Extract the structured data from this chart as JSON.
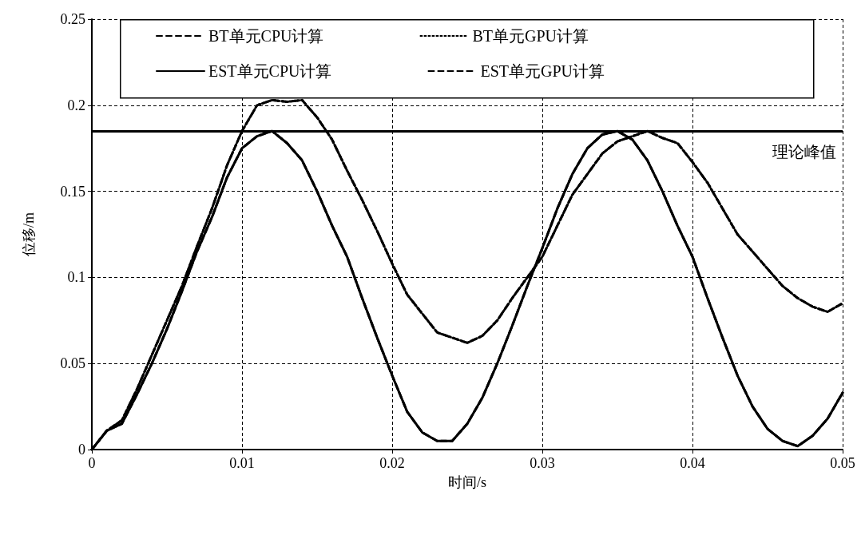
{
  "chart_data": {
    "type": "line",
    "xlabel": "时间/s",
    "ylabel": "位移/m",
    "x": [
      0,
      0.001,
      0.002,
      0.003,
      0.004,
      0.005,
      0.006,
      0.007,
      0.008,
      0.009,
      0.01,
      0.011,
      0.012,
      0.013,
      0.014,
      0.015,
      0.016,
      0.017,
      0.018,
      0.019,
      0.02,
      0.021,
      0.022,
      0.023,
      0.024,
      0.025,
      0.026,
      0.027,
      0.028,
      0.029,
      0.03,
      0.031,
      0.032,
      0.033,
      0.034,
      0.035,
      0.036,
      0.037,
      0.038,
      0.039,
      0.04,
      0.041,
      0.042,
      0.043,
      0.044,
      0.045,
      0.046,
      0.047,
      0.048,
      0.049,
      0.05
    ],
    "series": [
      {
        "name": "BT单元CPU计算",
        "color": "#000000",
        "line_style": "dashed",
        "values": [
          0,
          0.011,
          0.017,
          0.035,
          0.055,
          0.075,
          0.095,
          0.118,
          0.14,
          0.165,
          0.185,
          0.2,
          0.203,
          0.202,
          0.203,
          0.193,
          0.18,
          0.162,
          0.145,
          0.127,
          0.108,
          0.09,
          0.079,
          0.068,
          0.065,
          0.062,
          0.066,
          0.075,
          0.088,
          0.1,
          0.112,
          0.13,
          0.148,
          0.16,
          0.172,
          0.179,
          0.182,
          0.185,
          0.181,
          0.178,
          0.167,
          0.155,
          0.14,
          0.125,
          0.115,
          0.105,
          0.095,
          0.088,
          0.083,
          0.08,
          0.085
        ]
      },
      {
        "name": "BT单元GPU计算",
        "color": "#000000",
        "line_style": "dotted",
        "values": [
          0,
          0.011,
          0.017,
          0.035,
          0.055,
          0.075,
          0.095,
          0.118,
          0.14,
          0.165,
          0.185,
          0.2,
          0.203,
          0.202,
          0.203,
          0.193,
          0.18,
          0.162,
          0.145,
          0.127,
          0.108,
          0.09,
          0.079,
          0.068,
          0.065,
          0.062,
          0.066,
          0.075,
          0.088,
          0.1,
          0.112,
          0.13,
          0.148,
          0.16,
          0.172,
          0.179,
          0.182,
          0.185,
          0.181,
          0.178,
          0.167,
          0.155,
          0.14,
          0.125,
          0.115,
          0.105,
          0.095,
          0.088,
          0.083,
          0.08,
          0.085
        ]
      },
      {
        "name": "EST单元CPU计算",
        "color": "#000000",
        "line_style": "solid",
        "values": [
          0,
          0.011,
          0.015,
          0.032,
          0.05,
          0.07,
          0.092,
          0.115,
          0.135,
          0.158,
          0.175,
          0.182,
          0.185,
          0.178,
          0.168,
          0.15,
          0.13,
          0.112,
          0.088,
          0.065,
          0.043,
          0.022,
          0.01,
          0.005,
          0.005,
          0.015,
          0.03,
          0.05,
          0.072,
          0.095,
          0.117,
          0.14,
          0.16,
          0.175,
          0.183,
          0.185,
          0.18,
          0.168,
          0.15,
          0.13,
          0.112,
          0.088,
          0.065,
          0.043,
          0.025,
          0.012,
          0.005,
          0.002,
          0.008,
          0.018,
          0.033
        ]
      },
      {
        "name": "EST单元GPU计算",
        "color": "#000000",
        "line_style": "dashed",
        "values": [
          0,
          0.011,
          0.015,
          0.032,
          0.05,
          0.07,
          0.092,
          0.115,
          0.135,
          0.158,
          0.175,
          0.182,
          0.185,
          0.178,
          0.168,
          0.15,
          0.13,
          0.112,
          0.088,
          0.065,
          0.043,
          0.022,
          0.01,
          0.005,
          0.005,
          0.015,
          0.03,
          0.05,
          0.072,
          0.095,
          0.117,
          0.14,
          0.16,
          0.175,
          0.183,
          0.185,
          0.18,
          0.168,
          0.15,
          0.13,
          0.112,
          0.088,
          0.065,
          0.043,
          0.025,
          0.012,
          0.005,
          0.002,
          0.008,
          0.018,
          0.033
        ]
      }
    ],
    "ref_lines": [
      {
        "axis": "y",
        "value": 0.185,
        "label": "理论峰值",
        "color": "#000000",
        "line_style": "solid"
      }
    ],
    "xlim": [
      0,
      0.05
    ],
    "xticks": [
      0,
      0.01,
      0.02,
      0.03,
      0.04,
      0.05
    ],
    "ylim": [
      0,
      0.25
    ],
    "yticks": [
      0,
      0.05,
      0.1,
      0.15,
      0.2,
      0.25
    ],
    "grid": true,
    "legend": "top",
    "marker": "none"
  }
}
